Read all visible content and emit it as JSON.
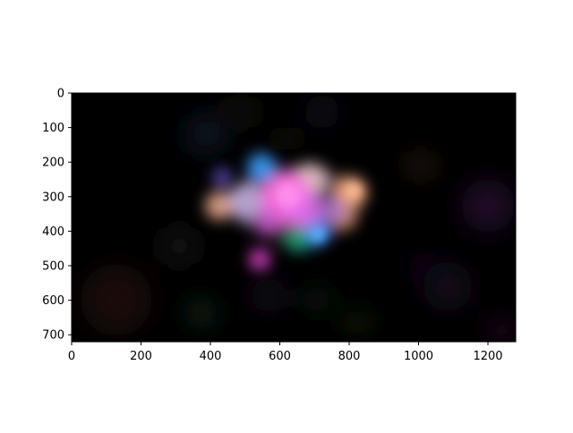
{
  "figure": {
    "x_ticks": [
      "0",
      "200",
      "400",
      "600",
      "800",
      "1000",
      "1200"
    ],
    "y_ticks": [
      "0",
      "100",
      "200",
      "300",
      "400",
      "500",
      "600",
      "700"
    ],
    "x_tick_values": [
      0,
      200,
      400,
      600,
      800,
      1000,
      1200
    ],
    "y_tick_values": [
      0,
      100,
      200,
      300,
      400,
      500,
      600,
      700
    ],
    "x_range": [
      0,
      1280
    ],
    "y_range": [
      720,
      0
    ],
    "image": {
      "description_colors": {
        "background": "#000000",
        "core_magenta": "#ff6fe0",
        "blue": "#3aa0ff",
        "orange": "#ffb07a",
        "green": "#1fa37a",
        "purple": "#7b3fd0"
      }
    }
  }
}
